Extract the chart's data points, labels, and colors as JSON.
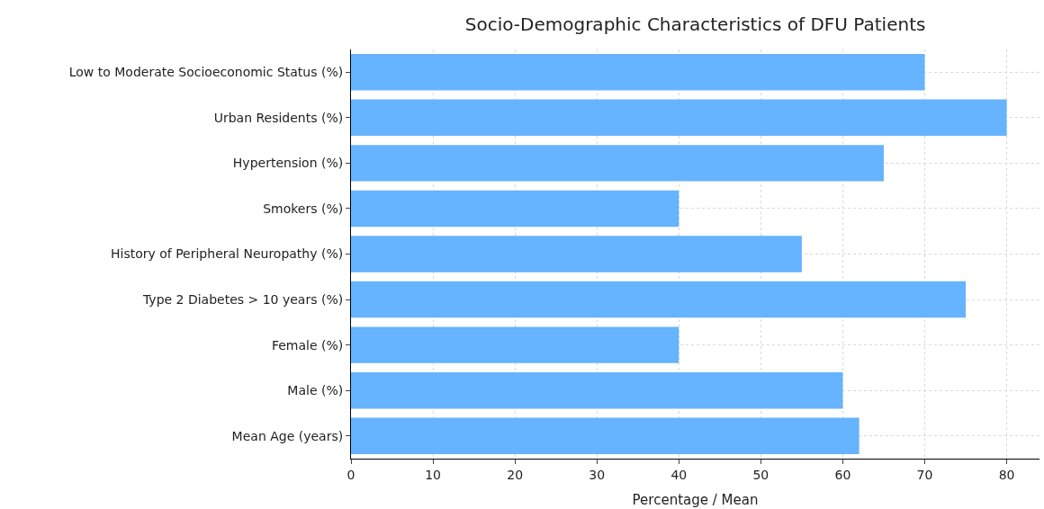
{
  "chart_data": {
    "type": "bar",
    "orientation": "horizontal",
    "title": "Socio-Demographic Characteristics of DFU Patients",
    "xlabel": "Percentage / Mean",
    "categories": [
      "Low to Moderate Socioeconomic Status (%)",
      "Urban Residents (%)",
      "Hypertension (%)",
      "Smokers (%)",
      "History of Peripheral Neuropathy (%)",
      "Type 2 Diabetes > 10 years (%)",
      "Female (%)",
      "Male (%)",
      "Mean Age (years)"
    ],
    "values": [
      70,
      80,
      65,
      40,
      55,
      75,
      40,
      60,
      62
    ],
    "color": "#66b3ff",
    "xlim": [
      0,
      84
    ],
    "xticks": [
      0,
      10,
      20,
      30,
      40,
      50,
      60,
      70,
      80
    ],
    "grid": true
  }
}
